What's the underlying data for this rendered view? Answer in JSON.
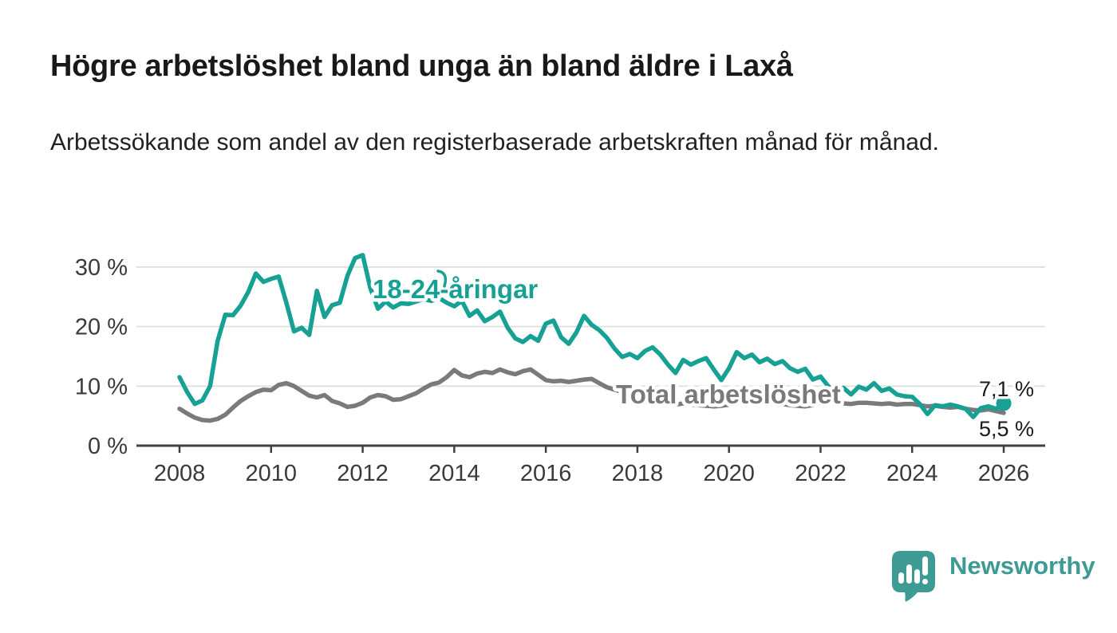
{
  "header": {
    "title": "Högre arbetslöshet bland unga än bland äldre i Laxå",
    "subtitle": "Arbetssökande som andel av den registerbaserade arbetskraften månad för månad."
  },
  "chart_data": {
    "type": "line",
    "title": "Högre arbetslöshet bland unga än bland äldre i Laxå",
    "subtitle": "Arbetssökande som andel av den registerbaserade arbetskraften månad för månad.",
    "x_unit": "year",
    "x_start": 2008.0,
    "x_step_years": 0.16667,
    "x_sampling": "every 2 months, Jan 2008 to Jan 2026",
    "xlim": [
      2007.05,
      2026.95
    ],
    "ylim": [
      0,
      33.5
    ],
    "grid": true,
    "legend_position": "inline-labels",
    "x_ticks": [
      {
        "value": 2008,
        "label": "2008"
      },
      {
        "value": 2010,
        "label": "2010"
      },
      {
        "value": 2012,
        "label": "2012"
      },
      {
        "value": 2014,
        "label": "2014"
      },
      {
        "value": 2016,
        "label": "2016"
      },
      {
        "value": 2018,
        "label": "2018"
      },
      {
        "value": 2020,
        "label": "2020"
      },
      {
        "value": 2022,
        "label": "2022"
      },
      {
        "value": 2024,
        "label": "2024"
      },
      {
        "value": 2026,
        "label": "2026"
      }
    ],
    "y_ticks": [
      {
        "value": 0,
        "label": "0 %"
      },
      {
        "value": 10,
        "label": "10 %"
      },
      {
        "value": 20,
        "label": "20 %"
      },
      {
        "value": 30,
        "label": "30 %"
      }
    ],
    "series": [
      {
        "name": "Total arbetslöshet",
        "color": "#7A7A7C",
        "end_value": 5.5,
        "end_label": "5,5 %",
        "values": [
          6.2,
          5.4,
          4.7,
          4.3,
          4.2,
          4.5,
          5.2,
          6.4,
          7.5,
          8.3,
          9.0,
          9.4,
          9.3,
          10.2,
          10.5,
          10.0,
          9.2,
          8.4,
          8.1,
          8.5,
          7.5,
          7.1,
          6.5,
          6.7,
          7.2,
          8.1,
          8.5,
          8.3,
          7.7,
          7.8,
          8.3,
          8.8,
          9.6,
          10.3,
          10.6,
          11.5,
          12.7,
          11.8,
          11.5,
          12.1,
          12.4,
          12.2,
          12.8,
          12.3,
          12.0,
          12.5,
          12.8,
          11.9,
          11.0,
          10.8,
          10.9,
          10.7,
          10.9,
          11.1,
          11.2,
          10.5,
          9.8,
          9.4,
          9.0,
          8.8,
          8.4,
          8.0,
          7.6,
          7.2,
          7.0,
          6.9,
          7.1,
          6.9,
          6.8,
          6.7,
          6.6,
          6.7,
          6.9,
          7.4,
          7.8,
          7.7,
          7.5,
          7.3,
          7.1,
          7.0,
          6.8,
          6.7,
          6.6,
          6.8,
          7.2,
          7.5,
          7.3,
          7.1,
          7.0,
          7.2,
          7.2,
          7.1,
          7.0,
          7.1,
          6.9,
          7.0,
          7.0,
          6.8,
          6.6,
          6.7,
          6.5,
          6.4,
          6.5,
          6.2,
          6.0,
          5.9,
          6.1,
          5.8,
          5.5
        ]
      },
      {
        "name": "18-24-åringar",
        "color": "#17A195",
        "end_value": 7.1,
        "end_label": "7,1 %",
        "end_dot": true,
        "values": [
          11.5,
          9.0,
          7.0,
          7.6,
          10.0,
          17.6,
          22.0,
          21.9,
          23.5,
          25.8,
          28.9,
          27.5,
          28.0,
          28.4,
          24.0,
          19.2,
          19.8,
          18.6,
          26.0,
          21.6,
          23.6,
          24.0,
          28.5,
          31.5,
          32.0,
          26.5,
          23.0,
          24.2,
          23.2,
          23.9,
          23.8,
          24.2,
          24.6,
          24.3,
          24.8,
          24.0,
          23.4,
          24.3,
          21.8,
          22.7,
          20.9,
          21.6,
          22.5,
          19.8,
          18.0,
          17.4,
          18.4,
          17.6,
          20.5,
          21.0,
          18.2,
          17.1,
          19.0,
          21.8,
          20.3,
          19.4,
          18.1,
          16.3,
          14.9,
          15.4,
          14.7,
          15.9,
          16.5,
          15.3,
          13.6,
          12.2,
          14.4,
          13.6,
          14.2,
          14.7,
          12.8,
          11.0,
          13.0,
          15.7,
          14.7,
          15.3,
          14.0,
          14.6,
          13.7,
          14.2,
          13.0,
          12.4,
          12.9,
          11.1,
          11.6,
          10.0,
          8.9,
          9.7,
          8.6,
          9.9,
          9.4,
          10.5,
          9.2,
          9.6,
          8.6,
          8.3,
          8.2,
          7.0,
          5.3,
          6.8,
          6.6,
          6.9,
          6.6,
          6.2,
          4.8,
          6.3,
          6.6,
          6.2,
          7.1
        ]
      }
    ],
    "annotations": [
      {
        "text": "7,1 %",
        "series": "18-24-åringar",
        "position": "line-end"
      },
      {
        "text": "5,5 %",
        "series": "Total arbetslöshet",
        "position": "line-end"
      }
    ],
    "colors": {
      "youth_line": "#17A195",
      "total_line": "#7A7A7C",
      "gridline": "#DCDCDC",
      "axis": "#404040",
      "tick_text": "#3A3A3A",
      "annotation_text": "#1A1A1A",
      "brand": "#3E9B94"
    }
  },
  "footer": {
    "brand": "Newsworthy"
  }
}
